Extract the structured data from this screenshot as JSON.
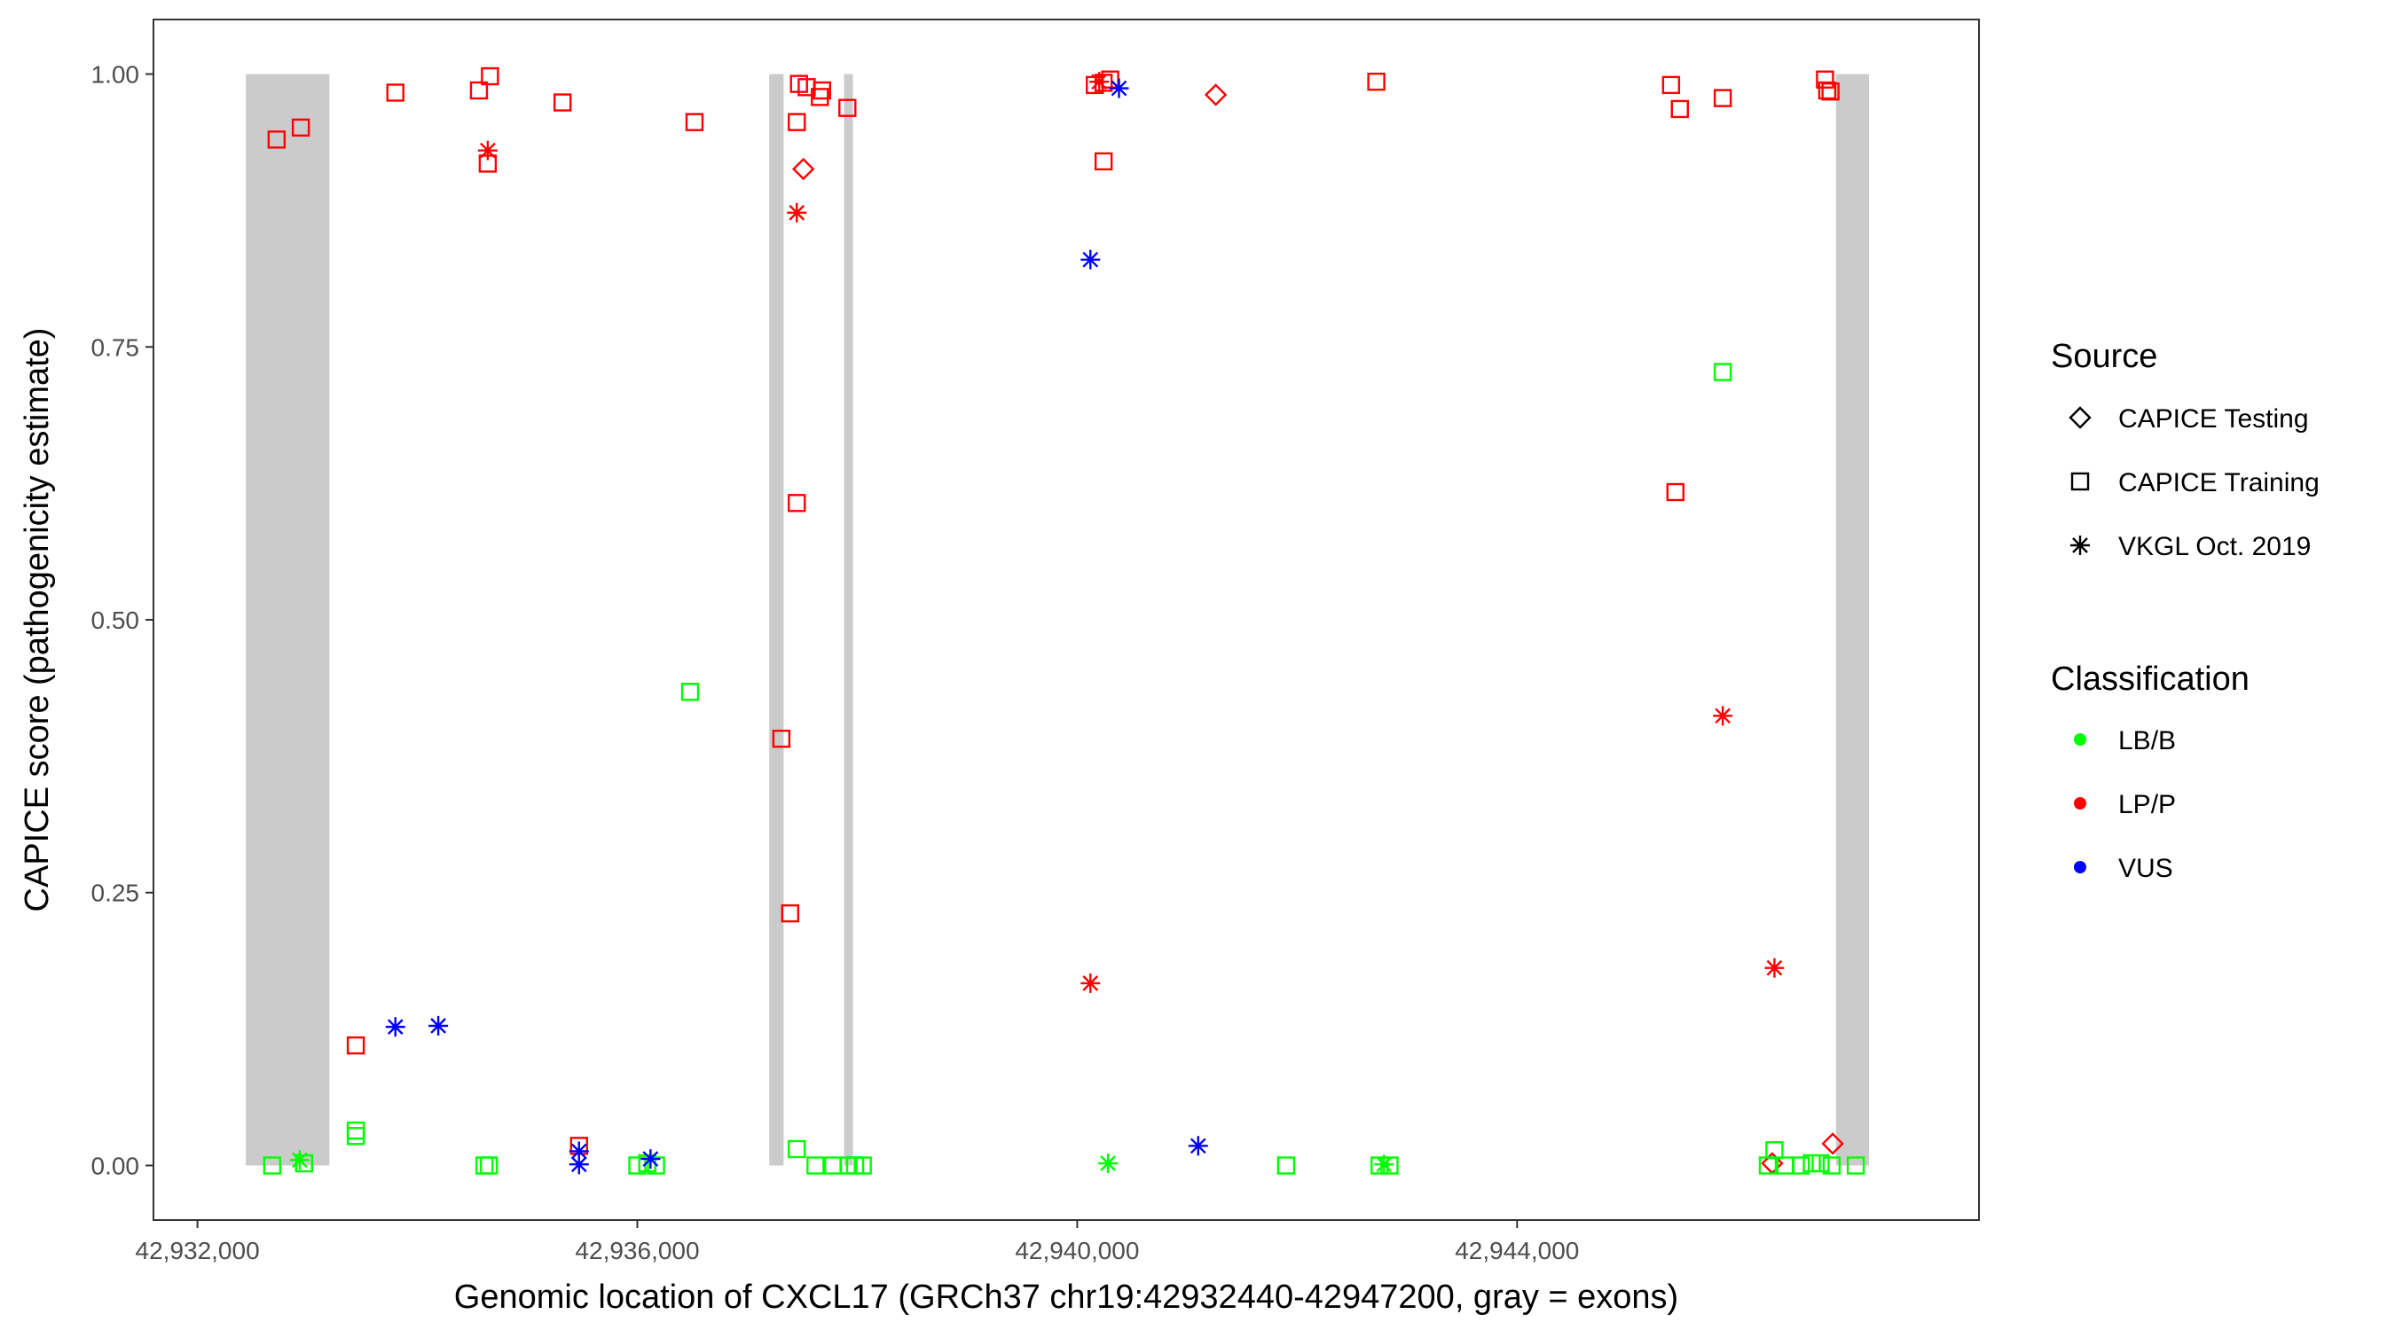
{
  "chart_data": {
    "type": "scatter",
    "xlabel": "Genomic location of CXCL17 (GRCh37 chr19:42932440-42947200, gray = exons)",
    "ylabel": "CAPICE score (pathogenicity estimate)",
    "xlim": [
      42931600,
      42948200
    ],
    "ylim": [
      -0.05,
      1.05
    ],
    "x_ticks": [
      42932000,
      42936000,
      42940000,
      42944000
    ],
    "x_tick_labels": [
      "42,932,000",
      "42,936,000",
      "42,940,000",
      "42,944,000"
    ],
    "y_ticks": [
      0,
      0.25,
      0.5,
      0.75,
      1
    ],
    "y_tick_labels": [
      "0.00",
      "0.25",
      "0.50",
      "0.75",
      "1.00"
    ],
    "grid": false,
    "exons": [
      [
        42932440,
        42933200
      ],
      [
        42937200,
        42937330
      ],
      [
        42937880,
        42937960
      ],
      [
        42946900,
        42947200
      ]
    ],
    "legend": {
      "position": "right",
      "source": {
        "title": "Source",
        "items": [
          {
            "label": "CAPICE Testing",
            "shape": "diamond"
          },
          {
            "label": "CAPICE Training",
            "shape": "square"
          },
          {
            "label": "VKGL Oct. 2019",
            "shape": "asterisk"
          }
        ]
      },
      "classification": {
        "title": "Classification",
        "items": [
          {
            "label": "LB/B",
            "color": "#00ff00"
          },
          {
            "label": "LP/P",
            "color": "#ff0000"
          },
          {
            "label": "VUS",
            "color": "#0000ff"
          }
        ]
      }
    },
    "colors": {
      "LB/B": "#00ff00",
      "LP/P": "#ff0000",
      "VUS": "#0000ff",
      "exon": "#cbcbcb"
    },
    "points": [
      {
        "x": 42932720,
        "y": 0.94,
        "source": "CAPICE Training",
        "class": "LP/P"
      },
      {
        "x": 42932940,
        "y": 0.951,
        "source": "CAPICE Training",
        "class": "LP/P"
      },
      {
        "x": 42932680,
        "y": 0.0,
        "source": "CAPICE Training",
        "class": "LB/B"
      },
      {
        "x": 42932970,
        "y": 0.002,
        "source": "CAPICE Training",
        "class": "LB/B"
      },
      {
        "x": 42932930,
        "y": 0.005,
        "source": "VKGL Oct. 2019",
        "class": "LB/B"
      },
      {
        "x": 42933440,
        "y": 0.11,
        "source": "CAPICE Training",
        "class": "LP/P"
      },
      {
        "x": 42933440,
        "y": 0.032,
        "source": "CAPICE Training",
        "class": "LB/B"
      },
      {
        "x": 42933440,
        "y": 0.027,
        "source": "CAPICE Training",
        "class": "LB/B"
      },
      {
        "x": 42933800,
        "y": 0.983,
        "source": "CAPICE Training",
        "class": "LP/P"
      },
      {
        "x": 42933800,
        "y": 0.127,
        "source": "VKGL Oct. 2019",
        "class": "VUS"
      },
      {
        "x": 42934190,
        "y": 0.128,
        "source": "VKGL Oct. 2019",
        "class": "VUS"
      },
      {
        "x": 42934560,
        "y": 0.985,
        "source": "CAPICE Training",
        "class": "LP/P"
      },
      {
        "x": 42934660,
        "y": 0.998,
        "source": "CAPICE Training",
        "class": "LP/P"
      },
      {
        "x": 42934640,
        "y": 0.918,
        "source": "CAPICE Training",
        "class": "LP/P"
      },
      {
        "x": 42934640,
        "y": 0.93,
        "source": "VKGL Oct. 2019",
        "class": "LP/P"
      },
      {
        "x": 42934610,
        "y": 0.0,
        "source": "CAPICE Training",
        "class": "LB/B"
      },
      {
        "x": 42934650,
        "y": 0.0,
        "source": "CAPICE Training",
        "class": "LB/B"
      },
      {
        "x": 42935320,
        "y": 0.974,
        "source": "CAPICE Training",
        "class": "LP/P"
      },
      {
        "x": 42935470,
        "y": 0.018,
        "source": "CAPICE Training",
        "class": "LP/P"
      },
      {
        "x": 42935470,
        "y": 0.013,
        "source": "VKGL Oct. 2019",
        "class": "VUS"
      },
      {
        "x": 42935470,
        "y": 0.001,
        "source": "VKGL Oct. 2019",
        "class": "VUS"
      },
      {
        "x": 42936000,
        "y": 0.0,
        "source": "CAPICE Training",
        "class": "LB/B"
      },
      {
        "x": 42936090,
        "y": 0.002,
        "source": "CAPICE Training",
        "class": "LB/B"
      },
      {
        "x": 42936170,
        "y": 0.0,
        "source": "CAPICE Training",
        "class": "LB/B"
      },
      {
        "x": 42936120,
        "y": 0.006,
        "source": "VKGL Oct. 2019",
        "class": "VUS"
      },
      {
        "x": 42936480,
        "y": 0.434,
        "source": "CAPICE Training",
        "class": "LB/B"
      },
      {
        "x": 42936520,
        "y": 0.956,
        "source": "CAPICE Training",
        "class": "LP/P"
      },
      {
        "x": 42937470,
        "y": 0.991,
        "source": "CAPICE Training",
        "class": "LP/P"
      },
      {
        "x": 42937540,
        "y": 0.988,
        "source": "CAPICE Training",
        "class": "LP/P"
      },
      {
        "x": 42937680,
        "y": 0.985,
        "source": "CAPICE Training",
        "class": "LP/P"
      },
      {
        "x": 42937660,
        "y": 0.979,
        "source": "CAPICE Training",
        "class": "LP/P"
      },
      {
        "x": 42937910,
        "y": 0.969,
        "source": "CAPICE Training",
        "class": "LP/P"
      },
      {
        "x": 42937450,
        "y": 0.956,
        "source": "CAPICE Training",
        "class": "LP/P"
      },
      {
        "x": 42937510,
        "y": 0.913,
        "source": "CAPICE Testing",
        "class": "LP/P"
      },
      {
        "x": 42937450,
        "y": 0.873,
        "source": "VKGL Oct. 2019",
        "class": "LP/P"
      },
      {
        "x": 42937450,
        "y": 0.607,
        "source": "CAPICE Training",
        "class": "LP/P"
      },
      {
        "x": 42937310,
        "y": 0.391,
        "source": "CAPICE Training",
        "class": "LP/P"
      },
      {
        "x": 42937390,
        "y": 0.231,
        "source": "CAPICE Training",
        "class": "LP/P"
      },
      {
        "x": 42937450,
        "y": 0.015,
        "source": "CAPICE Training",
        "class": "LB/B"
      },
      {
        "x": 42937620,
        "y": 0.0,
        "source": "CAPICE Training",
        "class": "LB/B"
      },
      {
        "x": 42937780,
        "y": 0.0,
        "source": "CAPICE Training",
        "class": "LB/B"
      },
      {
        "x": 42937920,
        "y": 0.0,
        "source": "CAPICE Training",
        "class": "LB/B"
      },
      {
        "x": 42937980,
        "y": 0.0,
        "source": "CAPICE Training",
        "class": "LB/B"
      },
      {
        "x": 42938050,
        "y": 0.0,
        "source": "CAPICE Training",
        "class": "LB/B"
      },
      {
        "x": 42940160,
        "y": 0.99,
        "source": "CAPICE Training",
        "class": "LP/P"
      },
      {
        "x": 42940240,
        "y": 0.992,
        "source": "CAPICE Training",
        "class": "LP/P"
      },
      {
        "x": 42940300,
        "y": 0.995,
        "source": "CAPICE Training",
        "class": "LP/P"
      },
      {
        "x": 42940200,
        "y": 0.993,
        "source": "VKGL Oct. 2019",
        "class": "LP/P"
      },
      {
        "x": 42940380,
        "y": 0.987,
        "source": "VKGL Oct. 2019",
        "class": "VUS"
      },
      {
        "x": 42940240,
        "y": 0.92,
        "source": "CAPICE Training",
        "class": "LP/P"
      },
      {
        "x": 42940120,
        "y": 0.83,
        "source": "VKGL Oct. 2019",
        "class": "VUS"
      },
      {
        "x": 42940120,
        "y": 0.167,
        "source": "VKGL Oct. 2019",
        "class": "LP/P"
      },
      {
        "x": 42940280,
        "y": 0.002,
        "source": "VKGL Oct. 2019",
        "class": "LB/B"
      },
      {
        "x": 42941100,
        "y": 0.018,
        "source": "VKGL Oct. 2019",
        "class": "VUS"
      },
      {
        "x": 42941260,
        "y": 0.981,
        "source": "CAPICE Testing",
        "class": "LP/P"
      },
      {
        "x": 42941900,
        "y": 0.0,
        "source": "CAPICE Training",
        "class": "LB/B"
      },
      {
        "x": 42942720,
        "y": 0.993,
        "source": "CAPICE Training",
        "class": "LP/P"
      },
      {
        "x": 42942750,
        "y": 0.0,
        "source": "CAPICE Training",
        "class": "LB/B"
      },
      {
        "x": 42942840,
        "y": 0.0,
        "source": "CAPICE Training",
        "class": "LB/B"
      },
      {
        "x": 42942790,
        "y": 0.001,
        "source": "VKGL Oct. 2019",
        "class": "LB/B"
      },
      {
        "x": 42945400,
        "y": 0.99,
        "source": "CAPICE Training",
        "class": "LP/P"
      },
      {
        "x": 42945480,
        "y": 0.968,
        "source": "CAPICE Training",
        "class": "LP/P"
      },
      {
        "x": 42945440,
        "y": 0.617,
        "source": "CAPICE Training",
        "class": "LP/P"
      },
      {
        "x": 42945870,
        "y": 0.978,
        "source": "CAPICE Training",
        "class": "LP/P"
      },
      {
        "x": 42945870,
        "y": 0.727,
        "source": "CAPICE Training",
        "class": "LB/B"
      },
      {
        "x": 42945870,
        "y": 0.412,
        "source": "VKGL Oct. 2019",
        "class": "LP/P"
      },
      {
        "x": 42946340,
        "y": 0.181,
        "source": "VKGL Oct. 2019",
        "class": "LP/P"
      },
      {
        "x": 42946340,
        "y": 0.014,
        "source": "CAPICE Training",
        "class": "LB/B"
      },
      {
        "x": 42946320,
        "y": 0.002,
        "source": "CAPICE Testing",
        "class": "LP/P"
      },
      {
        "x": 42946280,
        "y": 0.0,
        "source": "CAPICE Training",
        "class": "LB/B"
      },
      {
        "x": 42946440,
        "y": 0.0,
        "source": "CAPICE Training",
        "class": "LB/B"
      },
      {
        "x": 42946580,
        "y": 0.0,
        "source": "CAPICE Training",
        "class": "LB/B"
      },
      {
        "x": 42946680,
        "y": 0.002,
        "source": "CAPICE Training",
        "class": "LB/B"
      },
      {
        "x": 42946760,
        "y": 0.002,
        "source": "CAPICE Training",
        "class": "LB/B"
      },
      {
        "x": 42946860,
        "y": 0.0,
        "source": "CAPICE Training",
        "class": "LB/B"
      },
      {
        "x": 42947080,
        "y": 0.0,
        "source": "CAPICE Training",
        "class": "LB/B"
      },
      {
        "x": 42946800,
        "y": 0.995,
        "source": "CAPICE Training",
        "class": "LP/P"
      },
      {
        "x": 42946820,
        "y": 0.985,
        "source": "CAPICE Training",
        "class": "LP/P"
      },
      {
        "x": 42946850,
        "y": 0.984,
        "source": "CAPICE Training",
        "class": "LP/P"
      },
      {
        "x": 42946870,
        "y": 0.02,
        "source": "CAPICE Testing",
        "class": "LP/P"
      }
    ]
  }
}
